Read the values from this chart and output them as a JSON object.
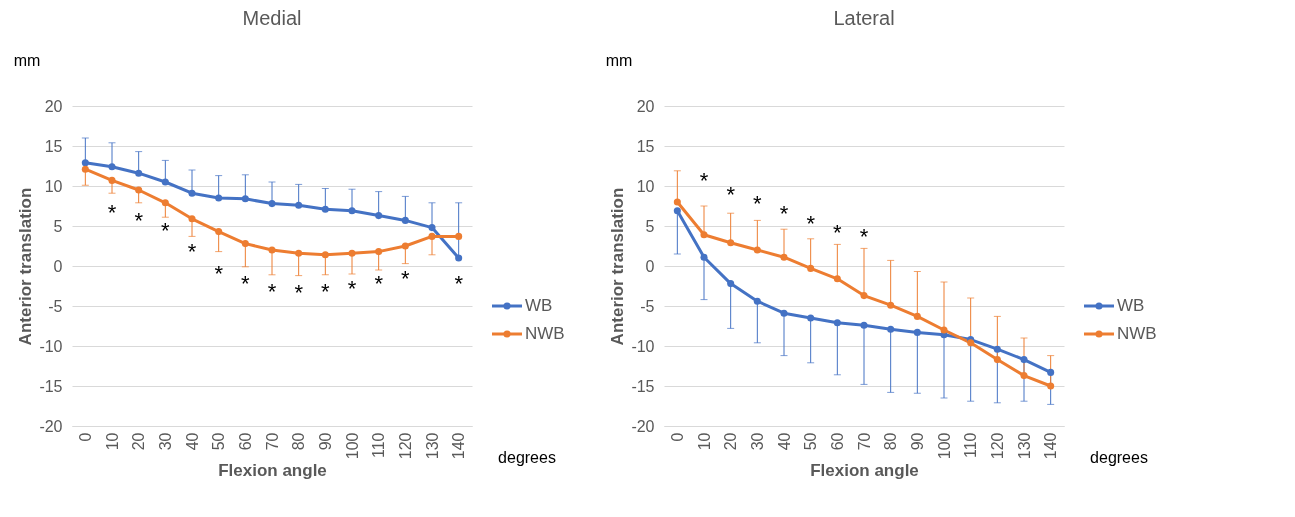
{
  "chart_data": [
    {
      "type": "line",
      "title": "Medial",
      "xlabel": "Flexion angle",
      "ylabel": "Anterior translation",
      "categories": [
        "0",
        "10",
        "20",
        "30",
        "40",
        "50",
        "60",
        "70",
        "80",
        "90",
        "100",
        "110",
        "120",
        "130",
        "140"
      ],
      "series": [
        {
          "name": "WB",
          "color": "#4472c4",
          "values": [
            12.9,
            12.4,
            11.6,
            10.5,
            9.1,
            8.5,
            8.4,
            7.8,
            7.6,
            7.1,
            6.9,
            6.3,
            5.7,
            4.8,
            1.0
          ],
          "errors": [
            [
              12.9,
              16.0
            ],
            [
              12.4,
              15.4
            ],
            [
              11.6,
              14.3
            ],
            [
              10.5,
              13.2
            ],
            [
              9.1,
              12.0
            ],
            [
              8.5,
              11.3
            ],
            [
              8.4,
              11.4
            ],
            [
              7.8,
              10.5
            ],
            [
              7.6,
              10.2
            ],
            [
              7.1,
              9.7
            ],
            [
              6.9,
              9.6
            ],
            [
              6.3,
              9.3
            ],
            [
              5.7,
              8.7
            ],
            [
              4.8,
              7.9
            ],
            [
              1.0,
              7.9
            ]
          ]
        },
        {
          "name": "NWB",
          "color": "#ed7d31",
          "values": [
            12.1,
            10.7,
            9.5,
            7.9,
            5.9,
            4.3,
            2.8,
            2.0,
            1.6,
            1.4,
            1.6,
            1.8,
            2.5,
            3.7,
            3.7
          ],
          "errors": [
            [
              10.1,
              12.1
            ],
            [
              9.1,
              10.7
            ],
            [
              7.9,
              9.5
            ],
            [
              6.1,
              7.9
            ],
            [
              3.7,
              5.9
            ],
            [
              1.8,
              4.3
            ],
            [
              -0.1,
              2.8
            ],
            [
              -1.1,
              2.0
            ],
            [
              -1.2,
              1.6
            ],
            [
              -1.1,
              1.4
            ],
            [
              -1.0,
              1.6
            ],
            [
              -0.5,
              1.8
            ],
            [
              0.3,
              2.5
            ],
            [
              1.4,
              3.7
            ],
            null
          ]
        }
      ],
      "ylim": [
        -20,
        20
      ],
      "yticks": [
        -20,
        -15,
        -10,
        -5,
        0,
        5,
        10,
        15,
        20
      ],
      "grid": "y",
      "legend": "right",
      "marker": "circle",
      "line_style": "solid",
      "annotations": [
        "mm",
        "degrees",
        "*",
        "*",
        "*",
        "*",
        "*",
        "*",
        "*",
        "*",
        "*",
        "*",
        "*",
        "*",
        "*"
      ]
    },
    {
      "type": "line",
      "title": "Lateral",
      "xlabel": "Flexion angle",
      "ylabel": "Anterior translation",
      "categories": [
        "0",
        "10",
        "20",
        "30",
        "40",
        "50",
        "60",
        "70",
        "80",
        "90",
        "100",
        "110",
        "120",
        "130",
        "140"
      ],
      "series": [
        {
          "name": "WB",
          "color": "#4472c4",
          "values": [
            6.9,
            1.1,
            -2.2,
            -4.4,
            -5.9,
            -6.5,
            -7.1,
            -7.4,
            -7.9,
            -8.3,
            -8.6,
            -9.2,
            -10.4,
            -11.7,
            -13.3
          ],
          "errors": [
            [
              1.5,
              6.9
            ],
            [
              -4.2,
              1.1
            ],
            [
              -7.8,
              -2.2
            ],
            [
              -9.6,
              -4.4
            ],
            [
              -11.2,
              -5.9
            ],
            [
              -12.1,
              -6.5
            ],
            [
              -13.6,
              -7.1
            ],
            [
              -14.8,
              -7.4
            ],
            [
              -15.8,
              -7.9
            ],
            [
              -15.9,
              -8.3
            ],
            [
              -16.5,
              -8.6
            ],
            [
              -16.9,
              -9.2
            ],
            [
              -17.1,
              -10.4
            ],
            [
              -16.9,
              -11.7
            ],
            [
              -17.3,
              -13.3
            ]
          ]
        },
        {
          "name": "NWB",
          "color": "#ed7d31",
          "values": [
            8.0,
            3.9,
            2.9,
            2.0,
            1.1,
            -0.3,
            -1.6,
            -3.7,
            -4.9,
            -6.3,
            -8.0,
            -9.6,
            -11.7,
            -13.7,
            -15.0
          ],
          "errors": [
            [
              8.0,
              11.9
            ],
            [
              3.9,
              7.5
            ],
            [
              2.9,
              6.6
            ],
            [
              2.0,
              5.7
            ],
            [
              1.1,
              4.6
            ],
            [
              -0.3,
              3.4
            ],
            [
              -1.6,
              2.7
            ],
            [
              -3.7,
              2.2
            ],
            [
              -4.9,
              0.7
            ],
            [
              -6.3,
              -0.7
            ],
            [
              -8.0,
              -2.0
            ],
            [
              -9.6,
              -4.0
            ],
            [
              -11.7,
              -6.3
            ],
            [
              -13.7,
              -9.0
            ],
            [
              -15.0,
              -11.2
            ]
          ]
        }
      ],
      "ylim": [
        -20,
        20
      ],
      "yticks": [
        -20,
        -15,
        -10,
        -5,
        0,
        5,
        10,
        15,
        20
      ],
      "grid": "y",
      "legend": "right",
      "marker": "circle",
      "line_style": "solid",
      "annotations": [
        "mm",
        "degrees",
        "*",
        "*",
        "*",
        "*",
        "*",
        "*",
        "*"
      ]
    }
  ]
}
